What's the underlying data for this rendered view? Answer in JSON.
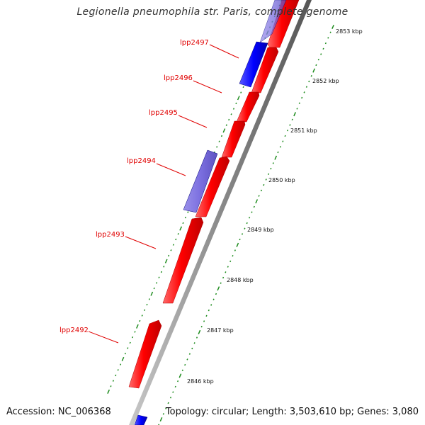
{
  "title": "Legionella pneumophila str. Paris, complete genome",
  "footer": {
    "accession": "Accession: NC_006368",
    "summary": "Topology: circular; Length: 3,503,610 bp; Genes: 3,080"
  },
  "colors": {
    "forward_cds": "#ff0000",
    "reverse_cds": "#0000ff",
    "reverse_cds_faded": "#7b6fe0",
    "backbone": "#8a8a8a",
    "gc_dots": "#1e8c1e",
    "label": "#e00000"
  },
  "genes": [
    {
      "label": "lpp2497",
      "strand": "reverse"
    },
    {
      "label": "lpp2496",
      "strand": "forward"
    },
    {
      "label": "lpp2495",
      "strand": "forward"
    },
    {
      "label": "lpp2494",
      "strand": "reverse"
    },
    {
      "label": "lpp2493",
      "strand": "forward"
    },
    {
      "label": "lpp2492",
      "strand": "forward"
    }
  ],
  "ticks": [
    "2853 kbp",
    "2852 kbp",
    "2851 kbp",
    "2850 kbp",
    "2849 kbp",
    "2848 kbp",
    "2847 kbp",
    "2846 kbp"
  ]
}
